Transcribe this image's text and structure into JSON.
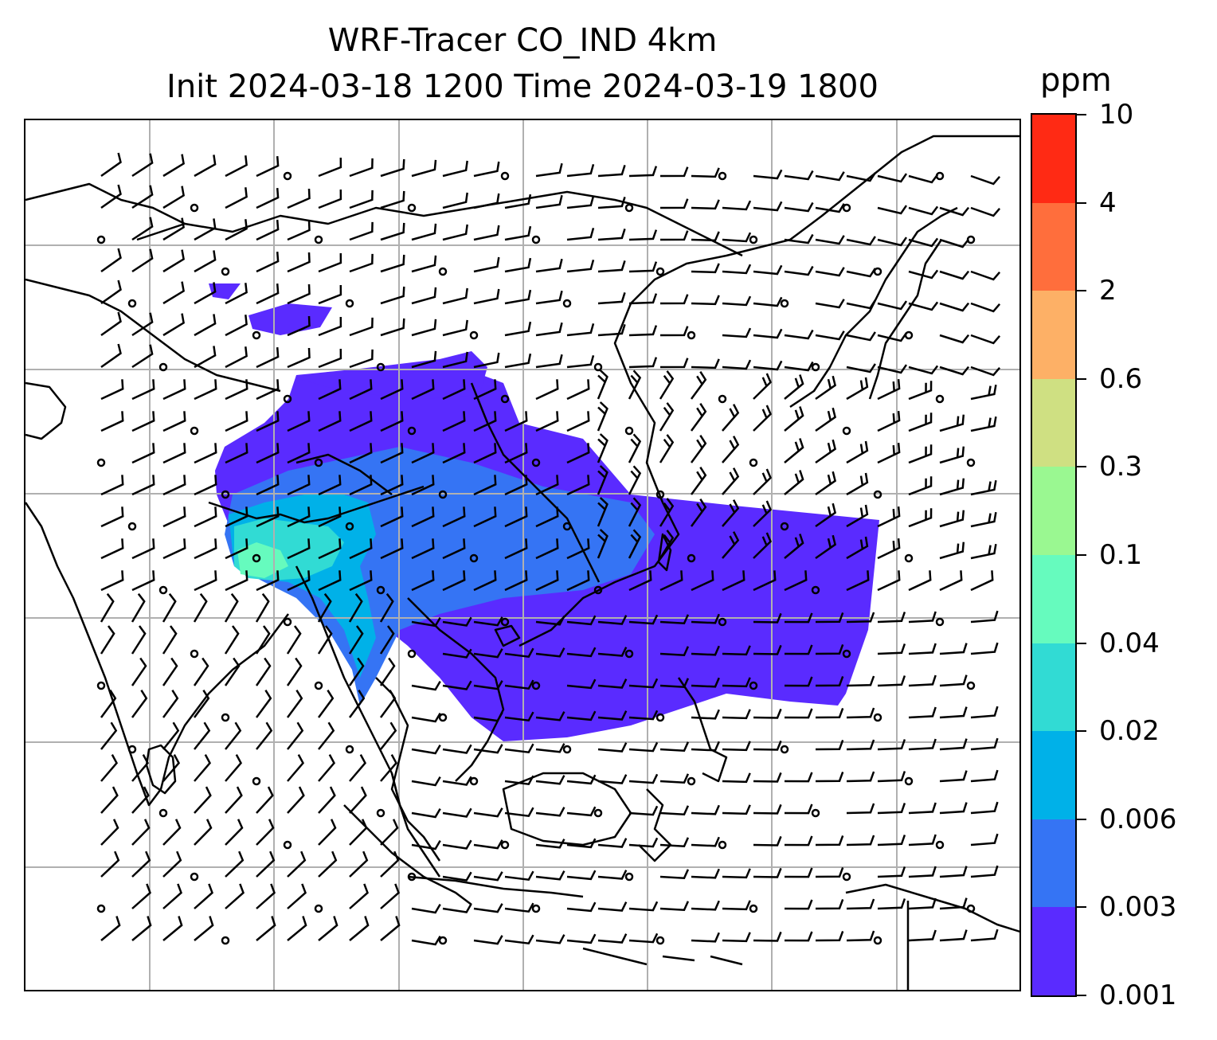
{
  "title": {
    "line1": "WRF-Tracer CO_IND 4km",
    "line2": "Init 2024-03-18 1200 Time 2024-03-19 1800"
  },
  "colorbar": {
    "units": "ppm",
    "levels": [
      "0.001",
      "0.003",
      "0.006",
      "0.02",
      "0.04",
      "0.1",
      "0.3",
      "0.6",
      "2",
      "4",
      "10"
    ],
    "colors": [
      "#5a2bff",
      "#3574f4",
      "#00b1e8",
      "#31dbd4",
      "#66fbbe",
      "#9af891",
      "#cfe082",
      "#fdb066",
      "#ff6e3c",
      "#ff2a14"
    ]
  },
  "map": {
    "variable": "CO tracer concentration with wind barbs",
    "gridline_color": "#b0b0b0",
    "coastline_color": "#000000"
  }
}
